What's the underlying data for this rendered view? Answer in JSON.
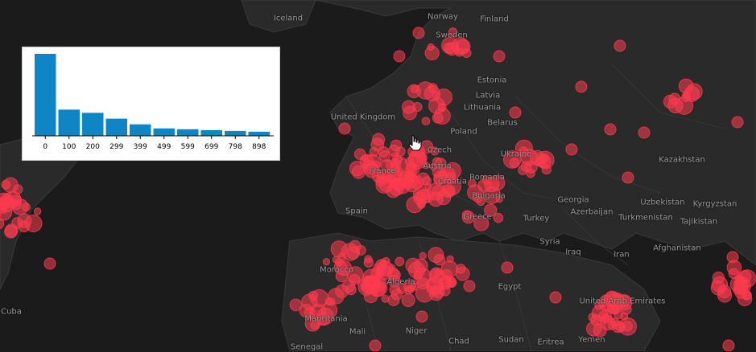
{
  "map": {
    "background": "#1b1b1b",
    "land_color": "#2a2a2a",
    "border_color": "#3a3a3a",
    "marker_color": "#ff3b4e",
    "labels": [
      {
        "name": "Iceland"
      },
      {
        "name": "Norway"
      },
      {
        "name": "Finland"
      },
      {
        "name": "Sweden"
      },
      {
        "name": "Estonia"
      },
      {
        "name": "Latvia"
      },
      {
        "name": "Lithuania"
      },
      {
        "name": "United Kingdom"
      },
      {
        "name": "Belarus"
      },
      {
        "name": "Poland"
      },
      {
        "name": "Czech"
      },
      {
        "name": "Austria"
      },
      {
        "name": "Ukraine"
      },
      {
        "name": "France"
      },
      {
        "name": "Croatia"
      },
      {
        "name": "Romania"
      },
      {
        "name": "Bulgaria"
      },
      {
        "name": "Spain"
      },
      {
        "name": "Greece"
      },
      {
        "name": "Turkey"
      },
      {
        "name": "Georgia"
      },
      {
        "name": "Azerbaijan"
      },
      {
        "name": "Kazakhstan"
      },
      {
        "name": "Uzbekistan"
      },
      {
        "name": "Kyrgyzstan"
      },
      {
        "name": "Turkmenistan"
      },
      {
        "name": "Tajikistan"
      },
      {
        "name": "Syria"
      },
      {
        "name": "Iraq"
      },
      {
        "name": "Iran"
      },
      {
        "name": "Afghanistan"
      },
      {
        "name": "Morocco"
      },
      {
        "name": "Algeria"
      },
      {
        "name": "Egypt"
      },
      {
        "name": "United Arab Emirates"
      },
      {
        "name": "Cuba"
      },
      {
        "name": "Mauritania"
      },
      {
        "name": "Mali"
      },
      {
        "name": "Niger"
      },
      {
        "name": "Chad"
      },
      {
        "name": "Sudan"
      },
      {
        "name": "Eritrea"
      },
      {
        "name": "Yemen"
      },
      {
        "name": "Senegal"
      }
    ]
  },
  "histogram": {
    "bar_color": "#0e86c6",
    "chart_data": {
      "type": "bar",
      "categories": [
        "0",
        "100",
        "200",
        "299",
        "399",
        "499",
        "599",
        "699",
        "798",
        "898"
      ],
      "values": [
        100,
        32,
        28,
        21,
        14,
        9,
        8,
        7,
        6,
        5
      ],
      "ylim": [
        0,
        100
      ],
      "title": "",
      "xlabel": "",
      "ylabel": ""
    }
  },
  "cursor": {
    "icon": "hand-pointer-icon"
  }
}
